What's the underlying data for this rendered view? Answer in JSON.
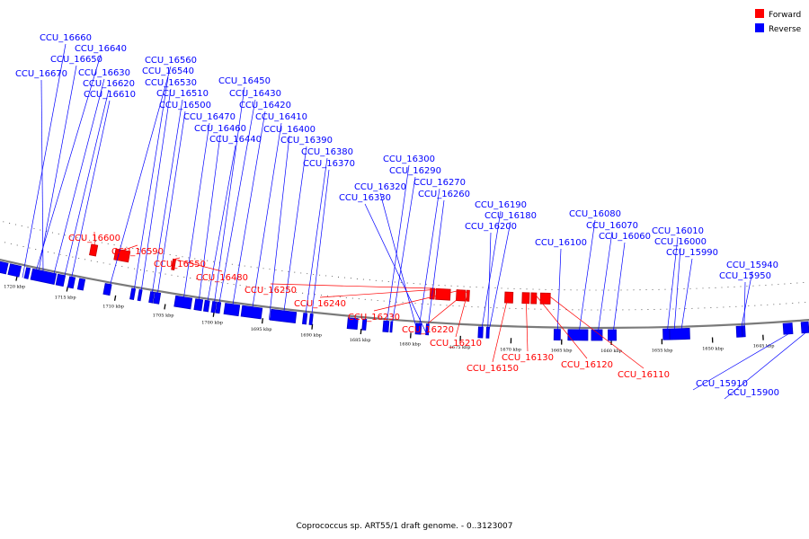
{
  "caption": "Coprococcus sp. ART55/1 draft genome. - 0..3123007",
  "legend": [
    {
      "label": "Forward",
      "color": "#ff0000"
    },
    {
      "label": "Reverse",
      "color": "#0000ff"
    }
  ],
  "colors": {
    "forward": "#ff0000",
    "reverse": "#0000ff",
    "backbone": "#7a7a7a"
  },
  "ticks": [
    "1720 kbp",
    "1715 kbp",
    "1710 kbp",
    "1705 kbp",
    "1700 kbp",
    "1695 kbp",
    "1690 kbp",
    "1685 kbp",
    "1680 kbp",
    "1675 kbp",
    "1670 kbp",
    "1665 kbp",
    "1660 kbp",
    "1655 kbp",
    "1650 kbp",
    "1645 kbp"
  ],
  "reverse_labels": [
    "CCU_16660",
    "CCU_16640",
    "CCU_16650",
    "CCU_16670",
    "CCU_16630",
    "CCU_16620",
    "CCU_16610",
    "CCU_16560",
    "CCU_16540",
    "CCU_16530",
    "CCU_16510",
    "CCU_16500",
    "CCU_16470",
    "CCU_16460",
    "CCU_16440",
    "CCU_16450",
    "CCU_16430",
    "CCU_16420",
    "CCU_16410",
    "CCU_16400",
    "CCU_16390",
    "CCU_16380",
    "CCU_16370",
    "CCU_16300",
    "CCU_16290",
    "CCU_16320",
    "CCU_16330",
    "CCU_16270",
    "CCU_16260",
    "CCU_16190",
    "CCU_16180",
    "CCU_16200",
    "CCU_16080",
    "CCU_16070",
    "CCU_16060",
    "CCU_16100",
    "CCU_16010",
    "CCU_16000",
    "CCU_15990",
    "CCU_15940",
    "CCU_15950",
    "CCU_15910",
    "CCU_15900"
  ],
  "forward_labels": [
    "CCU_16600",
    "CCU_16590",
    "CCU_16550",
    "CCU_16480",
    "CCU_16250",
    "CCU_16240",
    "CCU_16230",
    "CCU_16220",
    "CCU_16210",
    "CCU_16150",
    "CCU_16130",
    "CCU_16120",
    "CCU_16110"
  ]
}
